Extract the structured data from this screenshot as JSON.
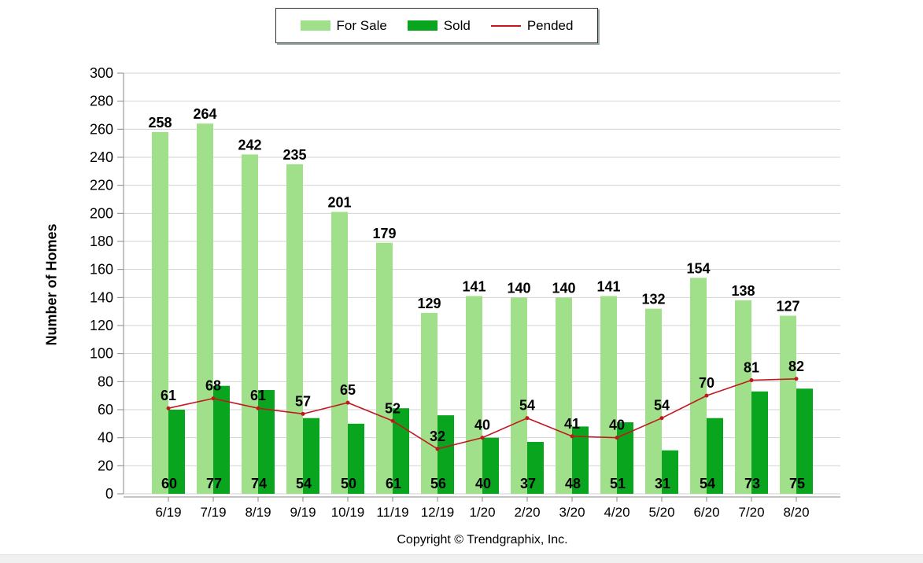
{
  "legend": {
    "for_sale": "For Sale",
    "sold": "Sold",
    "pended": "Pended"
  },
  "colors": {
    "for_sale": "#a0e08a",
    "sold": "#0aa51e",
    "pended": "#c0181e",
    "grid": "#d3d3d3"
  },
  "footer": "Copyright © Trendgraphix, Inc.",
  "chart_data": {
    "type": "bar",
    "title": "",
    "xlabel": "",
    "ylabel": "Number of Homes",
    "ylim": [
      0,
      300
    ],
    "yticks": [
      0,
      20,
      40,
      60,
      80,
      100,
      120,
      140,
      160,
      180,
      200,
      220,
      240,
      260,
      280,
      300
    ],
    "grid": true,
    "legend_position": "top-center",
    "categories": [
      "6/19",
      "7/19",
      "8/19",
      "9/19",
      "10/19",
      "11/19",
      "12/19",
      "1/20",
      "2/20",
      "3/20",
      "4/20",
      "5/20",
      "6/20",
      "7/20",
      "8/20"
    ],
    "series": [
      {
        "name": "For Sale",
        "kind": "bar",
        "values": [
          258,
          264,
          242,
          235,
          201,
          179,
          129,
          141,
          140,
          140,
          141,
          132,
          154,
          138,
          127
        ]
      },
      {
        "name": "Sold",
        "kind": "bar",
        "values": [
          60,
          77,
          74,
          54,
          50,
          61,
          56,
          40,
          37,
          48,
          51,
          31,
          54,
          73,
          75
        ]
      },
      {
        "name": "Pended",
        "kind": "line",
        "values": [
          61,
          68,
          61,
          57,
          65,
          52,
          32,
          40,
          54,
          41,
          40,
          54,
          70,
          81,
          82
        ]
      }
    ]
  }
}
